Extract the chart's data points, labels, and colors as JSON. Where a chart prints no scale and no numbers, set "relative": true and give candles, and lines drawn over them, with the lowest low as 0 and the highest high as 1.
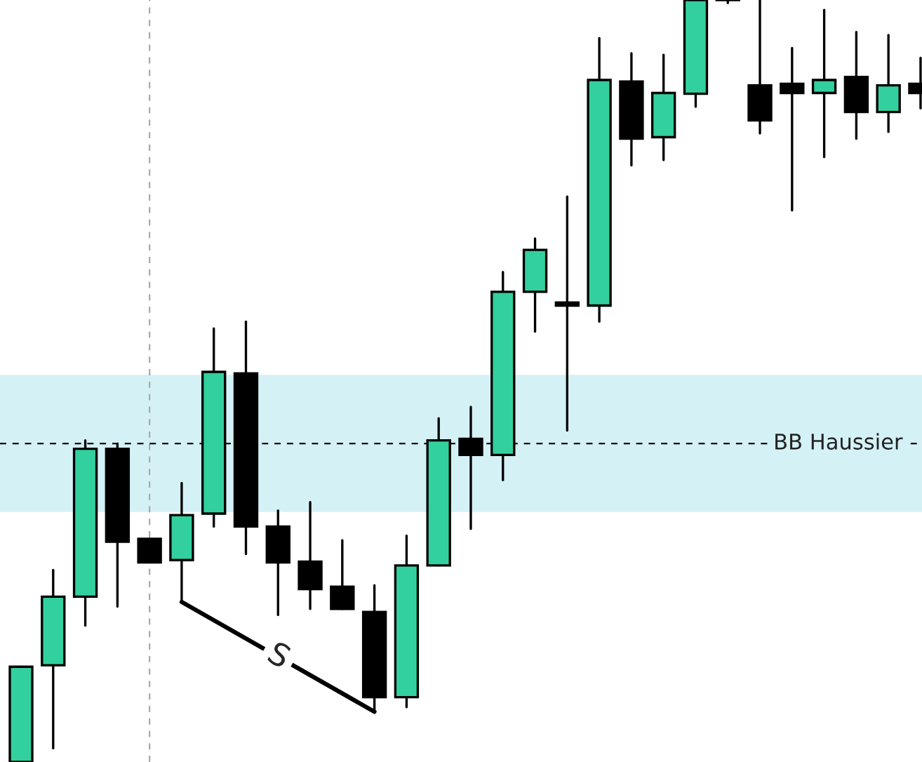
{
  "chart_data": {
    "type": "candlestick",
    "relative": true,
    "categories": [
      null,
      null,
      null,
      null,
      null,
      null,
      null,
      null,
      null,
      null,
      null,
      null,
      null,
      null,
      null,
      null,
      null,
      null,
      null,
      null,
      null,
      null,
      null,
      null,
      null,
      null,
      null,
      null,
      null
    ],
    "ohlc": [
      [
        0,
        0.125,
        0,
        0.125
      ],
      [
        0.127,
        0.252,
        0.018,
        0.217
      ],
      [
        0.217,
        0.422,
        0.179,
        0.411
      ],
      [
        0.411,
        0.418,
        0.204,
        0.289
      ],
      [
        0.293,
        0.293,
        0.262,
        0.262
      ],
      [
        0.265,
        0.366,
        0.21,
        0.324
      ],
      [
        0.326,
        0.569,
        0.309,
        0.512
      ],
      [
        0.51,
        0.578,
        0.273,
        0.309
      ],
      [
        0.309,
        0.33,
        0.193,
        0.262
      ],
      [
        0.263,
        0.341,
        0.201,
        0.227
      ],
      [
        0.23,
        0.291,
        0.201,
        0.201
      ],
      [
        0.197,
        0.232,
        0.066,
        0.085
      ],
      [
        0.085,
        0.297,
        0.072,
        0.258
      ],
      [
        0.258,
        0.451,
        0.258,
        0.422
      ],
      [
        0.424,
        0.466,
        0.306,
        0.403
      ],
      [
        0.403,
        0.643,
        0.37,
        0.617
      ],
      [
        0.617,
        0.687,
        0.565,
        0.672
      ],
      [
        0.602,
        0.742,
        0.435,
        0.599
      ],
      [
        0.599,
        0.95,
        0.578,
        0.895
      ],
      [
        0.893,
        0.93,
        0.783,
        0.818
      ],
      [
        0.82,
        0.928,
        0.79,
        0.878
      ],
      [
        0.877,
        1,
        0.86,
        1
      ],
      [
        1,
        1,
        0.996,
        1
      ],
      [
        0.888,
        1,
        0.825,
        0.842
      ],
      [
        0.89,
        0.937,
        0.724,
        0.878
      ],
      [
        0.878,
        0.987,
        0.794,
        0.895
      ],
      [
        0.899,
        0.958,
        0.818,
        0.853
      ],
      [
        0.853,
        0.954,
        0.827,
        0.888
      ],
      [
        0.89,
        0.924,
        0.858,
        0.878
      ]
    ],
    "colors": [
      "#32d09e",
      "#32d09e",
      "#32d09e",
      "#000000",
      "#000000",
      "#32d09e",
      "#32d09e",
      "#000000",
      "#000000",
      "#000000",
      "#000000",
      "#000000",
      "#32d09e",
      "#32d09e",
      "#000000",
      "#32d09e",
      "#32d09e",
      "#000000",
      "#32d09e",
      "#000000",
      "#32d09e",
      "#32d09e",
      "#000000",
      "#000000",
      "#000000",
      "#32d09e",
      "#000000",
      "#32d09e",
      "#000000"
    ],
    "series": [
      {
        "type": "line",
        "color": "#000000",
        "values": [
          null,
          null,
          null,
          null,
          null,
          0.21,
          null,
          null,
          null,
          null,
          null,
          0.066,
          null,
          null,
          null,
          null,
          null,
          null,
          null,
          null,
          null,
          null,
          null,
          null,
          null,
          null,
          null,
          null,
          null
        ]
      }
    ],
    "bands": [
      {
        "axis": "y",
        "from": 0.328,
        "to": 0.508,
        "color": "#d4f1f6"
      }
    ],
    "ref_lines": [
      {
        "axis": "y",
        "value": 0.418,
        "label": "BB Haussier",
        "color": "#000000",
        "line_style": "dashed"
      }
    ],
    "annotations": [
      "S"
    ],
    "legend": false
  }
}
